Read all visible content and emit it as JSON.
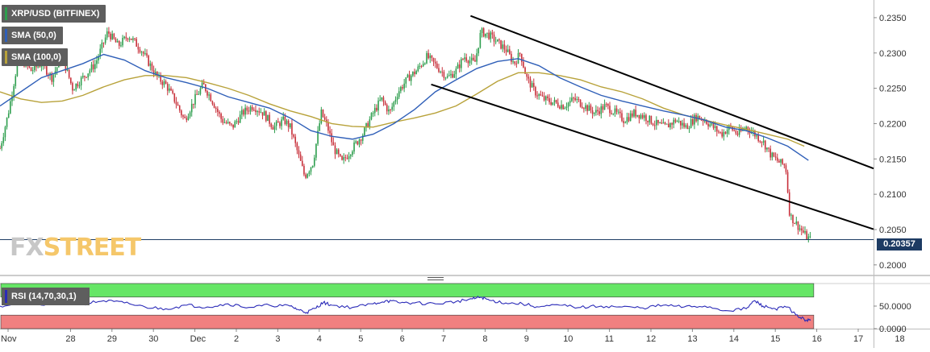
{
  "legend": {
    "instrument": "XRP/USD (BITFINEX)",
    "sma50": "SMA (50,0)",
    "sma100": "SMA (100,0)",
    "rsi": "RSI (14,70,30,1)"
  },
  "watermark": {
    "part1": "FX",
    "part2": "STREET"
  },
  "last_price": "0.20357",
  "colors": {
    "candle_up": "#2e9e4e",
    "candle_down": "#c8323c",
    "sma50": "#2f5fb8",
    "sma100": "#b8a23a",
    "trendline": "#000000",
    "price_line": "#1d3b63",
    "rsi_line": "#2a2ab8",
    "rsi_overbought_fill": "#66e666",
    "rsi_oversold_fill": "#f08080"
  },
  "chart_data": [
    {
      "type": "candlestick",
      "title": "XRP/USD (BITFINEX)",
      "x_ticks": [
        "Nov",
        "28",
        "29",
        "30",
        "Dec",
        "2",
        "3",
        "4",
        "5",
        "6",
        "7",
        "8",
        "9",
        "10",
        "11",
        "12",
        "13",
        "14",
        "15",
        "16",
        "17",
        "18"
      ],
      "y_ticks": [
        "0.2000",
        "0.2050",
        "0.2100",
        "0.2150",
        "0.2200",
        "0.2250",
        "0.2300",
        "0.2350"
      ],
      "ylim": [
        0.1985,
        0.2375
      ],
      "xlim": [
        27.0,
        48.5
      ],
      "last_price": 0.20357,
      "close_path": [
        [
          27.0,
          0.2165
        ],
        [
          27.2,
          0.2215
        ],
        [
          27.45,
          0.2295
        ],
        [
          27.75,
          0.2275
        ],
        [
          28.0,
          0.2285
        ],
        [
          28.25,
          0.2265
        ],
        [
          28.5,
          0.2295
        ],
        [
          28.75,
          0.225
        ],
        [
          29.0,
          0.2265
        ],
        [
          29.3,
          0.2285
        ],
        [
          29.6,
          0.233
        ],
        [
          29.85,
          0.231
        ],
        [
          30.1,
          0.2325
        ],
        [
          30.4,
          0.2305
        ],
        [
          30.6,
          0.2285
        ],
        [
          30.8,
          0.2265
        ],
        [
          31.0,
          0.2255
        ],
        [
          31.2,
          0.2235
        ],
        [
          31.45,
          0.2205
        ],
        [
          31.7,
          0.2235
        ],
        [
          31.9,
          0.2255
        ],
        [
          32.1,
          0.2235
        ],
        [
          32.35,
          0.2205
        ],
        [
          32.6,
          0.2195
        ],
        [
          32.85,
          0.2215
        ],
        [
          33.1,
          0.2225
        ],
        [
          33.35,
          0.2215
        ],
        [
          33.6,
          0.2195
        ],
        [
          33.85,
          0.2205
        ],
        [
          34.0,
          0.2195
        ],
        [
          34.15,
          0.2165
        ],
        [
          34.35,
          0.2125
        ],
        [
          34.55,
          0.2145
        ],
        [
          34.75,
          0.2215
        ],
        [
          34.9,
          0.2195
        ],
        [
          35.05,
          0.2165
        ],
        [
          35.25,
          0.2145
        ],
        [
          35.5,
          0.2165
        ],
        [
          35.75,
          0.2185
        ],
        [
          36.0,
          0.2215
        ],
        [
          36.2,
          0.2235
        ],
        [
          36.4,
          0.2215
        ],
        [
          36.6,
          0.2245
        ],
        [
          36.85,
          0.2265
        ],
        [
          37.05,
          0.2275
        ],
        [
          37.3,
          0.2295
        ],
        [
          37.55,
          0.228
        ],
        [
          37.8,
          0.2265
        ],
        [
          38.0,
          0.2275
        ],
        [
          38.2,
          0.2295
        ],
        [
          38.45,
          0.2285
        ],
        [
          38.6,
          0.233
        ],
        [
          38.8,
          0.2325
        ],
        [
          39.0,
          0.2315
        ],
        [
          39.2,
          0.2305
        ],
        [
          39.4,
          0.2285
        ],
        [
          39.55,
          0.23
        ],
        [
          39.7,
          0.2265
        ],
        [
          39.9,
          0.2245
        ],
        [
          40.1,
          0.2235
        ],
        [
          40.35,
          0.223
        ],
        [
          40.6,
          0.2225
        ],
        [
          40.85,
          0.2235
        ],
        [
          41.1,
          0.2225
        ],
        [
          41.35,
          0.2215
        ],
        [
          41.6,
          0.2225
        ],
        [
          41.85,
          0.2215
        ],
        [
          42.05,
          0.2205
        ],
        [
          42.3,
          0.2215
        ],
        [
          42.55,
          0.221
        ],
        [
          42.8,
          0.22
        ],
        [
          43.05,
          0.2195
        ],
        [
          43.3,
          0.2205
        ],
        [
          43.55,
          0.2195
        ],
        [
          43.8,
          0.221
        ],
        [
          44.0,
          0.2205
        ],
        [
          44.2,
          0.2195
        ],
        [
          44.4,
          0.2185
        ],
        [
          44.6,
          0.2195
        ],
        [
          44.8,
          0.2185
        ],
        [
          45.0,
          0.2195
        ],
        [
          45.2,
          0.2185
        ],
        [
          45.4,
          0.2175
        ],
        [
          45.6,
          0.2155
        ],
        [
          45.8,
          0.2145
        ],
        [
          45.95,
          0.214
        ],
        [
          46.05,
          0.207
        ],
        [
          46.25,
          0.2055
        ],
        [
          46.45,
          0.204
        ],
        [
          46.55,
          0.20357
        ]
      ],
      "sma50_path": [
        [
          27.0,
          0.2225
        ],
        [
          27.5,
          0.2245
        ],
        [
          28.0,
          0.2265
        ],
        [
          28.5,
          0.2275
        ],
        [
          29.0,
          0.2285
        ],
        [
          29.5,
          0.2298
        ],
        [
          30.0,
          0.229
        ],
        [
          30.5,
          0.2275
        ],
        [
          31.0,
          0.2265
        ],
        [
          31.5,
          0.2258
        ],
        [
          32.0,
          0.225
        ],
        [
          32.5,
          0.2238
        ],
        [
          33.0,
          0.223
        ],
        [
          33.5,
          0.2222
        ],
        [
          34.0,
          0.2208
        ],
        [
          34.5,
          0.219
        ],
        [
          35.0,
          0.2182
        ],
        [
          35.5,
          0.2178
        ],
        [
          36.0,
          0.2185
        ],
        [
          36.5,
          0.22
        ],
        [
          37.0,
          0.222
        ],
        [
          37.5,
          0.2245
        ],
        [
          38.0,
          0.2262
        ],
        [
          38.5,
          0.2278
        ],
        [
          39.0,
          0.2288
        ],
        [
          39.5,
          0.2292
        ],
        [
          40.0,
          0.2282
        ],
        [
          40.5,
          0.2265
        ],
        [
          41.0,
          0.2252
        ],
        [
          41.5,
          0.224
        ],
        [
          42.0,
          0.2232
        ],
        [
          42.5,
          0.2225
        ],
        [
          43.0,
          0.2218
        ],
        [
          43.5,
          0.2212
        ],
        [
          44.0,
          0.2205
        ],
        [
          44.5,
          0.2195
        ],
        [
          45.0,
          0.219
        ],
        [
          45.5,
          0.218
        ],
        [
          46.0,
          0.2168
        ],
        [
          46.5,
          0.2148
        ]
      ],
      "sma100_path": [
        [
          27.0,
          0.2245
        ],
        [
          27.5,
          0.2235
        ],
        [
          28.0,
          0.223
        ],
        [
          28.5,
          0.2232
        ],
        [
          29.0,
          0.224
        ],
        [
          29.5,
          0.2252
        ],
        [
          30.0,
          0.2262
        ],
        [
          30.5,
          0.2268
        ],
        [
          31.0,
          0.2268
        ],
        [
          31.5,
          0.2265
        ],
        [
          32.0,
          0.2258
        ],
        [
          32.5,
          0.225
        ],
        [
          33.0,
          0.224
        ],
        [
          33.5,
          0.2228
        ],
        [
          34.0,
          0.2218
        ],
        [
          34.5,
          0.221
        ],
        [
          35.0,
          0.22
        ],
        [
          35.5,
          0.2196
        ],
        [
          36.0,
          0.2195
        ],
        [
          36.5,
          0.2202
        ],
        [
          37.0,
          0.2208
        ],
        [
          37.5,
          0.2215
        ],
        [
          38.0,
          0.2225
        ],
        [
          38.5,
          0.2242
        ],
        [
          39.0,
          0.226
        ],
        [
          39.5,
          0.2272
        ],
        [
          40.0,
          0.2272
        ],
        [
          40.5,
          0.2268
        ],
        [
          41.0,
          0.2262
        ],
        [
          41.5,
          0.2252
        ],
        [
          42.0,
          0.2245
        ],
        [
          42.5,
          0.2235
        ],
        [
          43.0,
          0.2222
        ],
        [
          43.5,
          0.2212
        ],
        [
          44.0,
          0.2205
        ],
        [
          44.5,
          0.2198
        ],
        [
          45.0,
          0.2192
        ],
        [
          45.5,
          0.2185
        ],
        [
          46.0,
          0.2178
        ],
        [
          46.4,
          0.2168
        ]
      ],
      "trendlines": [
        {
          "from": [
            38.35,
            0.23525
          ],
          "to": [
            48.65,
            0.21365
          ]
        },
        {
          "from": [
            37.4,
            0.22555
          ],
          "to": [
            48.65,
            0.20505
          ]
        }
      ]
    },
    {
      "type": "line",
      "title": "RSI (14,70,30,1)",
      "y_ticks": [
        "0.0000",
        "50.0000"
      ],
      "ylim": [
        0,
        100
      ],
      "overbought": 70,
      "oversold": 30,
      "x": [
        27.0,
        27.5,
        28.0,
        28.5,
        29.0,
        29.5,
        30.0,
        30.5,
        31.0,
        31.5,
        32.0,
        32.5,
        33.0,
        33.5,
        34.0,
        34.2,
        34.4,
        34.6,
        34.8,
        35.0,
        35.5,
        36.0,
        36.3,
        36.6,
        37.0,
        37.5,
        38.0,
        38.4,
        38.6,
        38.8,
        39.2,
        39.6,
        40.0,
        40.5,
        41.0,
        41.5,
        42.0,
        42.5,
        43.0,
        43.5,
        44.0,
        44.5,
        45.0,
        45.2,
        45.4,
        45.7,
        46.0,
        46.2,
        46.4,
        46.55
      ],
      "values": [
        50,
        58,
        52,
        60,
        55,
        62,
        57,
        48,
        44,
        52,
        48,
        55,
        47,
        52,
        50,
        42,
        36,
        45,
        58,
        52,
        47,
        55,
        62,
        58,
        57,
        55,
        60,
        66,
        70,
        63,
        57,
        55,
        48,
        52,
        47,
        50,
        48,
        46,
        52,
        48,
        50,
        40,
        44,
        62,
        50,
        44,
        48,
        30,
        20,
        18
      ]
    }
  ]
}
